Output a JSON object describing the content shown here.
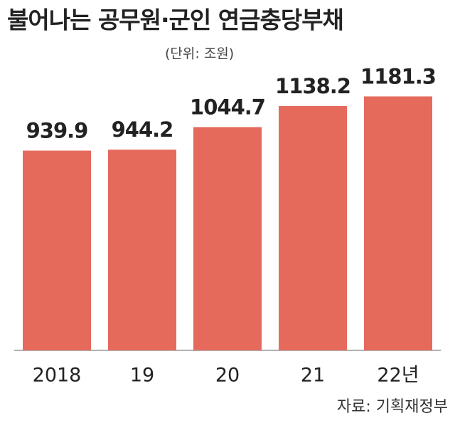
{
  "chart_data": {
    "type": "bar",
    "title": "불어나는 공무원·군인 연금충당부채",
    "subtitle": "(단위: 조원)",
    "categories": [
      "2018",
      "19",
      "20",
      "21",
      "22년"
    ],
    "values": [
      939.9,
      944.2,
      1044.7,
      1138.2,
      1181.3
    ],
    "color": "#e66a5c",
    "ylim": [
      50,
      1300
    ],
    "source": "자료: 기획재정부"
  }
}
